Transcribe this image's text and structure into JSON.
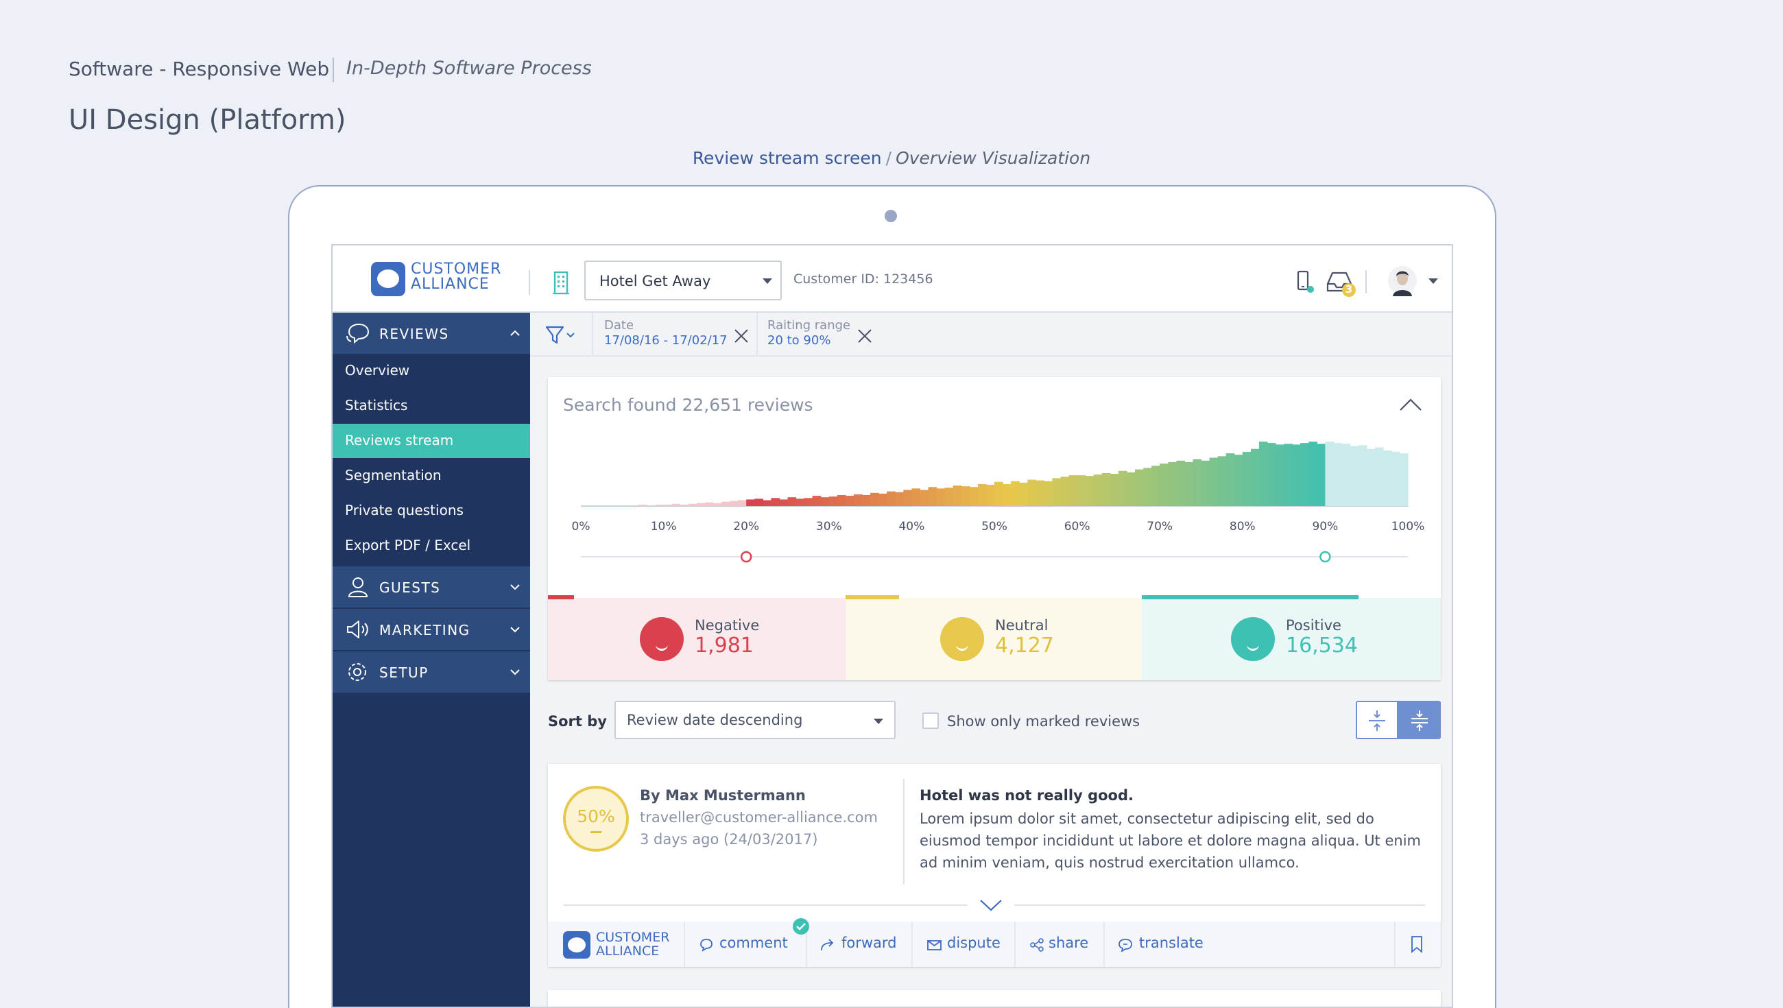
{
  "presentation": {
    "title": "Software - Responsive Web",
    "subtitle": "In-Depth Software Process",
    "heading": "UI Design (Platform)",
    "caption_main": "Review stream screen",
    "caption_sep": "/",
    "caption_sub": "Overview Visualization"
  },
  "header": {
    "logo_line1": "CUSTOMER",
    "logo_line2": "ALLIANCE",
    "hotel_select": "Hotel Get Away",
    "customer_id": "Customer ID: 123456",
    "notification_count": "3",
    "icons": [
      "building-icon",
      "mobile-icon",
      "inbox-icon",
      "avatar"
    ]
  },
  "sidebar": {
    "sections": [
      {
        "label": "REVIEWS",
        "icon": "reviews-icon",
        "expanded": true
      },
      {
        "label": "GUESTS",
        "icon": "guests-icon",
        "expanded": false
      },
      {
        "label": "MARKETING",
        "icon": "marketing-icon",
        "expanded": false
      },
      {
        "label": "SETUP",
        "icon": "setup-icon",
        "expanded": false
      }
    ],
    "items": [
      {
        "label": "Overview",
        "active": false
      },
      {
        "label": "Statistics",
        "active": false
      },
      {
        "label": "Reviews stream",
        "active": true
      },
      {
        "label": "Segmentation",
        "active": false
      },
      {
        "label": "Private questions",
        "active": false
      },
      {
        "label": "Export PDF / Excel",
        "active": false
      }
    ]
  },
  "filters": [
    {
      "label": "Date",
      "value": "17/08/16 - 17/02/17"
    },
    {
      "label": "Raiting range",
      "value": "20 to 90%"
    }
  ],
  "overview": {
    "found_text": "Search found 22,651 reviews",
    "range_min": 20,
    "range_max": 90,
    "stats": [
      {
        "name": "Negative",
        "value": "1,981",
        "color": "#d9414f",
        "bg": "#fbeaec"
      },
      {
        "name": "Neutral",
        "value": "4,127",
        "color": "#e8c84c",
        "bg": "#fcf9ea"
      },
      {
        "name": "Positive",
        "value": "16,534",
        "color": "#3ec0b3",
        "bg": "#e9f7f6"
      }
    ]
  },
  "chart_data": {
    "type": "bar",
    "x_tick_labels": [
      "0%",
      "10%",
      "20%",
      "30%",
      "40%",
      "50%",
      "60%",
      "70%",
      "80%",
      "90%",
      "100%"
    ],
    "xlim": [
      0,
      100
    ],
    "grid": false,
    "x": [
      0,
      1,
      2,
      3,
      4,
      5,
      6,
      7,
      8,
      9,
      10,
      11,
      12,
      13,
      14,
      15,
      16,
      17,
      18,
      19,
      20,
      21,
      22,
      23,
      24,
      25,
      26,
      27,
      28,
      29,
      30,
      31,
      32,
      33,
      34,
      35,
      36,
      37,
      38,
      39,
      40,
      41,
      42,
      43,
      44,
      45,
      46,
      47,
      48,
      49,
      50,
      51,
      52,
      53,
      54,
      55,
      56,
      57,
      58,
      59,
      60,
      61,
      62,
      63,
      64,
      65,
      66,
      67,
      68,
      69,
      70,
      71,
      72,
      73,
      74,
      75,
      76,
      77,
      78,
      79,
      80,
      81,
      82,
      83,
      84,
      85,
      86,
      87,
      88,
      89,
      90,
      91,
      92,
      93,
      94,
      95,
      96,
      97,
      98,
      99
    ],
    "values": [
      1,
      1,
      1,
      1,
      1,
      1,
      1,
      2,
      1,
      2,
      2,
      3,
      2,
      3,
      4,
      5,
      4,
      6,
      7,
      8,
      9,
      10,
      8,
      11,
      9,
      12,
      10,
      11,
      14,
      12,
      13,
      15,
      14,
      16,
      15,
      18,
      17,
      20,
      19,
      22,
      24,
      22,
      26,
      24,
      25,
      28,
      27,
      26,
      30,
      29,
      33,
      30,
      34,
      32,
      36,
      35,
      34,
      38,
      40,
      42,
      42,
      41,
      43,
      45,
      44,
      48,
      46,
      50,
      52,
      55,
      58,
      60,
      62,
      60,
      64,
      62,
      66,
      68,
      72,
      70,
      74,
      78,
      88,
      86,
      84,
      85,
      84,
      86,
      88,
      85,
      88,
      86,
      85,
      82,
      83,
      78,
      80,
      76,
      74,
      72
    ],
    "selected_range": [
      20,
      90
    ],
    "colors": {
      "negative": "#d9414f",
      "neutral": "#e8c84c",
      "positive": "#3ec0b3",
      "outside": "#c9ecea"
    }
  },
  "sort": {
    "label": "Sort by",
    "value": "Review date descending",
    "checkbox_label": "Show only marked reviews"
  },
  "review": {
    "score": "50%",
    "author": "By Max Mustermann",
    "email": "traveller@customer-alliance.com",
    "date": "3 days ago (24/03/2017)",
    "title": "Hotel was not really good.",
    "body": "Lorem ipsum dolor sit amet, consectetur adipiscing elit, sed do eiusmod tempor incididunt ut labore et dolore magna aliqua. Ut enim ad minim veniam, quis nostrud exercitation ullamco.",
    "actions": {
      "comment": "comment",
      "forward": "forward",
      "dispute": "dispute",
      "share": "share",
      "translate": "translate"
    }
  }
}
